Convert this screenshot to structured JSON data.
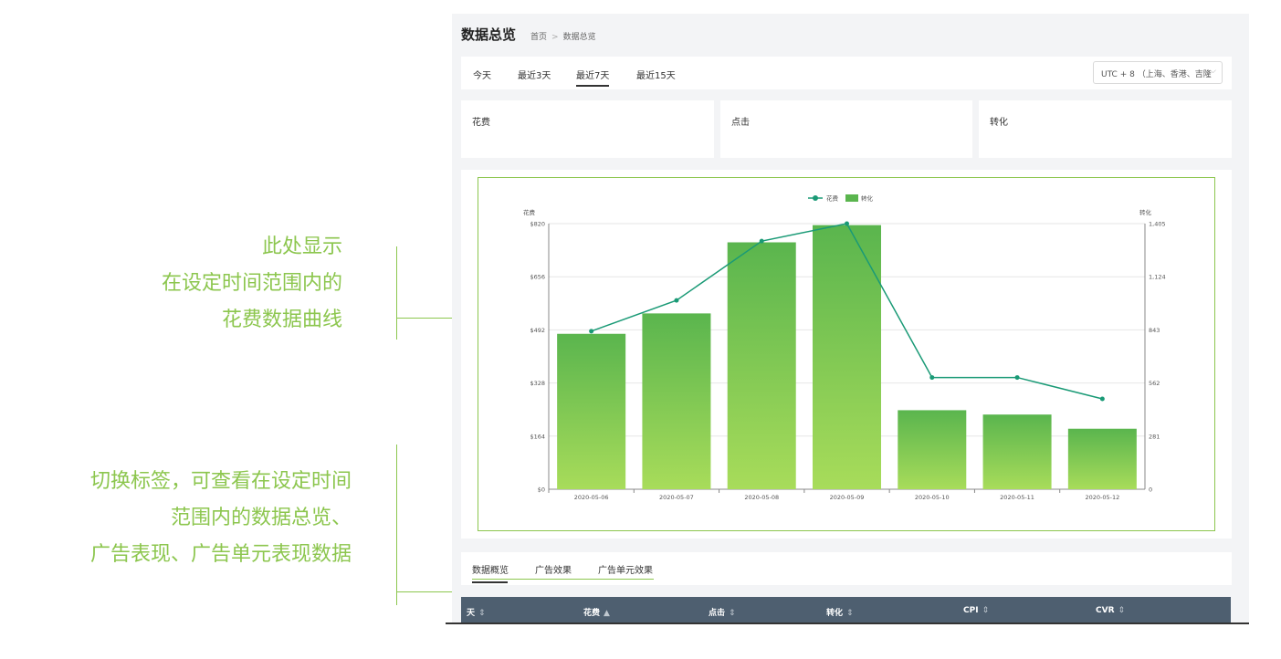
{
  "annotations": {
    "top": [
      "此处显示",
      "在设定时间范围内的",
      "花费数据曲线"
    ],
    "bottom": [
      "切换标签，可查看在设定时间",
      "范围内的数据总览、",
      "广告表现、广告单元表现数据"
    ]
  },
  "page": {
    "title": "数据总览",
    "breadcrumb": [
      "首页",
      "数据总览"
    ],
    "breadcrumb_sep": ">"
  },
  "range_tabs": [
    "今天",
    "最近3天",
    "最近7天",
    "最近15天"
  ],
  "range_active": "最近7天",
  "timezone": "UTC + 8 （上海、香港、吉隆",
  "metrics": [
    "花费",
    "点击",
    "转化"
  ],
  "chart_data": {
    "type": "bar+line",
    "legend": [
      "花费",
      "转化"
    ],
    "legend_position": "top-center",
    "left_axis_label": "花费",
    "right_axis_label": "转化",
    "categories": [
      "2020-05-06",
      "2020-05-07",
      "2020-05-08",
      "2020-05-09",
      "2020-05-10",
      "2020-05-11",
      "2020-05-12"
    ],
    "left_ticks": [
      "$0",
      "$164",
      "$328",
      "$492",
      "$656",
      "$820"
    ],
    "right_ticks": [
      "0",
      "281",
      "562",
      "843",
      "1,124",
      "1,405"
    ],
    "left_ylim": [
      0,
      820
    ],
    "right_ylim": [
      0,
      1405
    ],
    "series": [
      {
        "name": "转化",
        "type": "bar",
        "axis": "right",
        "values": [
          822,
          930,
          1306,
          1397,
          418,
          395,
          320
        ]
      },
      {
        "name": "花费",
        "type": "line",
        "axis": "left",
        "values": [
          488,
          583,
          766,
          820,
          345,
          345,
          279
        ]
      }
    ],
    "colors": {
      "line": "#1a9a76",
      "bar_top": "#5ab54e",
      "bar_bottom": "#a8dc5a",
      "grid": "#e6e6e6",
      "axis": "#888888"
    }
  },
  "bottom_tabs": [
    "数据概览",
    "广告效果",
    "广告单元效果"
  ],
  "bottom_active": "数据概览",
  "table_columns": [
    {
      "label": "天",
      "sort": "⇕"
    },
    {
      "label": "花费",
      "sort": "▲"
    },
    {
      "label": "点击",
      "sort": "⇕"
    },
    {
      "label": "转化",
      "sort": "⇕"
    },
    {
      "label": "CPI",
      "sort": "⇕"
    },
    {
      "label": "CVR",
      "sort": "⇕"
    }
  ]
}
